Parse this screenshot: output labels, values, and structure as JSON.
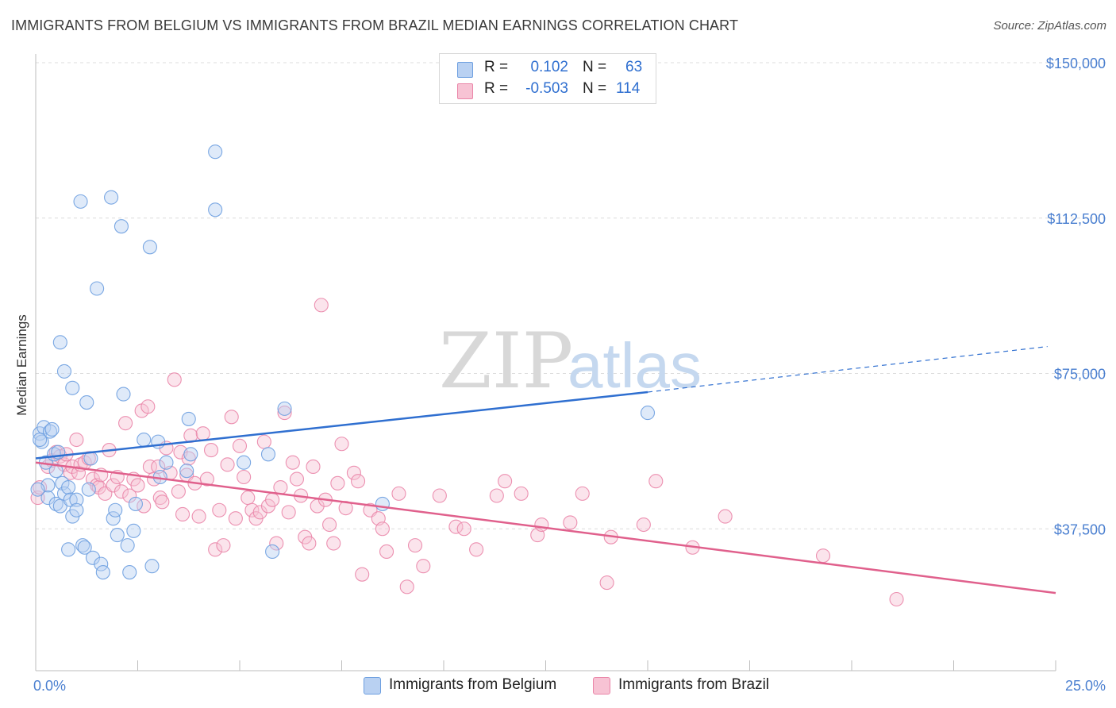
{
  "title": "IMMIGRANTS FROM BELGIUM VS IMMIGRANTS FROM BRAZIL MEDIAN EARNINGS CORRELATION CHART",
  "source": "Source: ZipAtlas.com",
  "watermark": {
    "zip": "ZIP",
    "atlas": "atlas"
  },
  "colors": {
    "belgium": "#6d9fe0",
    "belgium_fill": "#b9d1f2",
    "belgium_line": "#2f6fd0",
    "brazil": "#ea85a8",
    "brazil_fill": "#f7c3d4",
    "brazil_line": "#e0608c",
    "tick": "#4a7fd0"
  },
  "legend": {
    "rows": [
      {
        "r_label": "R =",
        "r_value": "0.102",
        "n_label": "N =",
        "n_value": "63"
      },
      {
        "r_label": "R =",
        "r_value": "-0.503",
        "n_label": "N =",
        "n_value": "114"
      }
    ]
  },
  "chart_data": {
    "type": "scatter",
    "title": "IMMIGRANTS FROM BELGIUM VS IMMIGRANTS FROM BRAZIL MEDIAN EARNINGS CORRELATION CHART",
    "xlabel": "",
    "ylabel": "Median Earnings",
    "xlim": [
      0,
      25
    ],
    "ylim": [
      0,
      155000
    ],
    "x_tick_labels": [
      "0.0%",
      "25.0%"
    ],
    "y_ticks": [
      37500,
      75000,
      112500,
      150000
    ],
    "y_tick_labels": [
      "$37,500",
      "$75,000",
      "$112,500",
      "$150,000"
    ],
    "grid": true,
    "series": [
      {
        "name": "Immigrants from Belgium",
        "r": 0.102,
        "n": 63,
        "trend": {
          "x0": 0,
          "y0": 54500,
          "x1": 15,
          "y1": 70500,
          "dash_to_x": 24.8,
          "dash_to_y": 81500
        },
        "points": [
          [
            0.1,
            60500
          ],
          [
            0.15,
            58500
          ],
          [
            0.2,
            62000
          ],
          [
            0.25,
            53500
          ],
          [
            0.3,
            48000
          ],
          [
            0.3,
            45000
          ],
          [
            0.35,
            61000
          ],
          [
            0.4,
            61500
          ],
          [
            0.45,
            55500
          ],
          [
            0.5,
            51500
          ],
          [
            0.5,
            43500
          ],
          [
            0.55,
            56000
          ],
          [
            0.6,
            82500
          ],
          [
            0.6,
            43000
          ],
          [
            0.65,
            48500
          ],
          [
            0.7,
            46000
          ],
          [
            0.7,
            75500
          ],
          [
            0.8,
            32500
          ],
          [
            0.8,
            47500
          ],
          [
            0.85,
            44500
          ],
          [
            0.9,
            40500
          ],
          [
            0.9,
            71500
          ],
          [
            1.0,
            44500
          ],
          [
            1.0,
            42000
          ],
          [
            1.1,
            116500
          ],
          [
            1.15,
            33500
          ],
          [
            1.2,
            33000
          ],
          [
            1.25,
            68000
          ],
          [
            1.3,
            47000
          ],
          [
            1.35,
            54500
          ],
          [
            1.4,
            30500
          ],
          [
            1.5,
            95500
          ],
          [
            1.6,
            29000
          ],
          [
            1.65,
            27000
          ],
          [
            1.85,
            117500
          ],
          [
            1.9,
            40000
          ],
          [
            1.95,
            42000
          ],
          [
            2.0,
            36000
          ],
          [
            2.1,
            110500
          ],
          [
            2.15,
            70000
          ],
          [
            2.25,
            33500
          ],
          [
            2.3,
            27000
          ],
          [
            2.4,
            37000
          ],
          [
            2.45,
            43500
          ],
          [
            2.65,
            59000
          ],
          [
            2.8,
            105500
          ],
          [
            2.85,
            28500
          ],
          [
            3.0,
            58500
          ],
          [
            3.05,
            50000
          ],
          [
            3.2,
            53500
          ],
          [
            3.7,
            51500
          ],
          [
            3.75,
            64000
          ],
          [
            3.8,
            55500
          ],
          [
            4.4,
            114500
          ],
          [
            4.4,
            128500
          ],
          [
            5.1,
            53500
          ],
          [
            5.7,
            55500
          ],
          [
            5.8,
            32000
          ],
          [
            6.1,
            66500
          ],
          [
            8.5,
            43500
          ],
          [
            15.0,
            65500
          ],
          [
            0.05,
            47000
          ],
          [
            0.1,
            59000
          ]
        ]
      },
      {
        "name": "Immigrants from Brazil",
        "r": -0.503,
        "n": 114,
        "trend": {
          "x0": 0,
          "y0": 53500,
          "x1": 25,
          "y1": 22000
        },
        "points": [
          [
            0.05,
            45000
          ],
          [
            0.1,
            47500
          ],
          [
            0.3,
            52500
          ],
          [
            0.4,
            54000
          ],
          [
            0.5,
            56000
          ],
          [
            0.6,
            55000
          ],
          [
            0.7,
            53000
          ],
          [
            0.75,
            55500
          ],
          [
            0.85,
            51000
          ],
          [
            0.9,
            52500
          ],
          [
            1.0,
            59000
          ],
          [
            1.05,
            51000
          ],
          [
            1.1,
            53000
          ],
          [
            1.2,
            53500
          ],
          [
            1.3,
            54500
          ],
          [
            1.4,
            49500
          ],
          [
            1.5,
            48000
          ],
          [
            1.55,
            47500
          ],
          [
            1.6,
            50500
          ],
          [
            1.7,
            46000
          ],
          [
            1.8,
            56500
          ],
          [
            1.9,
            48000
          ],
          [
            2.0,
            50000
          ],
          [
            2.1,
            46500
          ],
          [
            2.2,
            63000
          ],
          [
            2.3,
            45500
          ],
          [
            2.4,
            49500
          ],
          [
            2.5,
            48000
          ],
          [
            2.6,
            66000
          ],
          [
            2.65,
            43000
          ],
          [
            2.75,
            67000
          ],
          [
            2.8,
            52500
          ],
          [
            2.9,
            49500
          ],
          [
            3.0,
            52500
          ],
          [
            3.05,
            45000
          ],
          [
            3.1,
            44000
          ],
          [
            3.2,
            57000
          ],
          [
            3.3,
            51000
          ],
          [
            3.4,
            73500
          ],
          [
            3.5,
            46500
          ],
          [
            3.55,
            56000
          ],
          [
            3.6,
            41000
          ],
          [
            3.7,
            50500
          ],
          [
            3.75,
            54500
          ],
          [
            3.8,
            60000
          ],
          [
            3.9,
            48500
          ],
          [
            4.0,
            40500
          ],
          [
            4.1,
            60500
          ],
          [
            4.2,
            49500
          ],
          [
            4.3,
            56500
          ],
          [
            4.4,
            32500
          ],
          [
            4.5,
            42000
          ],
          [
            4.6,
            33500
          ],
          [
            4.7,
            53000
          ],
          [
            4.8,
            64500
          ],
          [
            4.9,
            40000
          ],
          [
            5.0,
            57500
          ],
          [
            5.1,
            50000
          ],
          [
            5.2,
            45000
          ],
          [
            5.3,
            42000
          ],
          [
            5.4,
            40000
          ],
          [
            5.5,
            41500
          ],
          [
            5.6,
            58500
          ],
          [
            5.7,
            43000
          ],
          [
            5.8,
            44500
          ],
          [
            5.9,
            34000
          ],
          [
            6.0,
            47500
          ],
          [
            6.1,
            65500
          ],
          [
            6.2,
            41500
          ],
          [
            6.3,
            53500
          ],
          [
            6.4,
            49500
          ],
          [
            6.5,
            45500
          ],
          [
            6.6,
            35500
          ],
          [
            6.7,
            34000
          ],
          [
            6.8,
            52500
          ],
          [
            6.9,
            43000
          ],
          [
            7.0,
            91500
          ],
          [
            7.1,
            44500
          ],
          [
            7.2,
            38500
          ],
          [
            7.3,
            34000
          ],
          [
            7.4,
            48500
          ],
          [
            7.5,
            58000
          ],
          [
            7.6,
            42500
          ],
          [
            7.8,
            51000
          ],
          [
            7.9,
            49000
          ],
          [
            8.0,
            26500
          ],
          [
            8.2,
            42000
          ],
          [
            8.4,
            40000
          ],
          [
            8.5,
            37500
          ],
          [
            8.6,
            32000
          ],
          [
            8.9,
            46000
          ],
          [
            9.1,
            23500
          ],
          [
            9.3,
            33500
          ],
          [
            9.5,
            28500
          ],
          [
            9.9,
            45500
          ],
          [
            10.3,
            38000
          ],
          [
            10.5,
            37500
          ],
          [
            10.8,
            32500
          ],
          [
            11.3,
            45500
          ],
          [
            11.5,
            49000
          ],
          [
            11.9,
            46000
          ],
          [
            12.3,
            36000
          ],
          [
            12.4,
            38500
          ],
          [
            13.1,
            39000
          ],
          [
            13.4,
            46000
          ],
          [
            14.0,
            24500
          ],
          [
            14.1,
            35500
          ],
          [
            14.9,
            38500
          ],
          [
            15.2,
            49000
          ],
          [
            16.1,
            33000
          ],
          [
            16.9,
            40500
          ],
          [
            19.3,
            31000
          ],
          [
            21.1,
            20500
          ]
        ]
      }
    ]
  },
  "bottom_legend": {
    "items": [
      {
        "label": "Immigrants from Belgium"
      },
      {
        "label": "Immigrants from Brazil"
      }
    ]
  }
}
